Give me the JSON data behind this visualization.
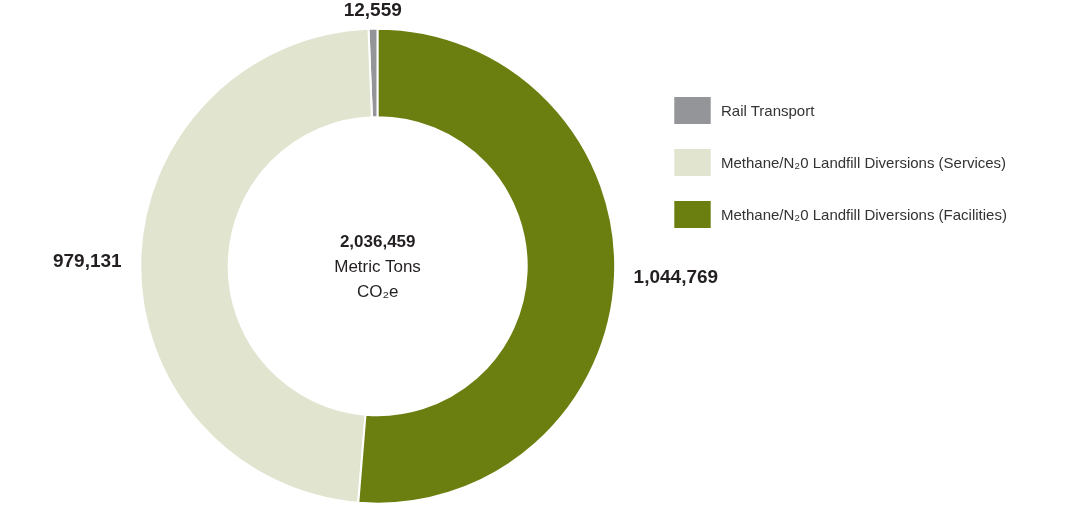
{
  "chart_data": {
    "type": "donut",
    "categories": [
      "Rail Transport",
      "Methane/N₂0 Landfill Diversions (Services)",
      "Methane/N₂0 Landfill Diversions (Facilities)"
    ],
    "values": [
      12559,
      979131,
      1044769
    ],
    "value_labels": [
      "12,559",
      "979,131",
      "1,044,769"
    ],
    "colors": [
      "#939598",
      "#e1e5d0",
      "#6b7f10"
    ],
    "legend": "right",
    "annotations": [
      "2,036,459",
      "Metric Tons",
      "CO₂e"
    ]
  }
}
